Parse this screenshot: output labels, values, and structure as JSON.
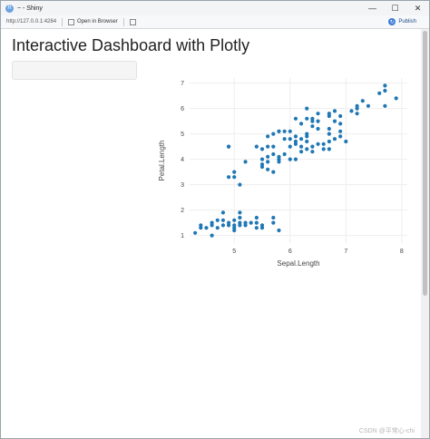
{
  "window": {
    "title": "~ - Shiny",
    "app_icon": "r-icon",
    "controls": [
      "minimize-icon",
      "maximize-icon",
      "close-icon"
    ]
  },
  "toolbar": {
    "url": "http://127.0.0.1:4284",
    "open_in_browser": "Open in Browser",
    "publish": "Publish"
  },
  "page": {
    "title": "Interactive Dashboard with Plotly",
    "select_value": ""
  },
  "watermark": "CSDN @平常心-chi",
  "chart_data": {
    "type": "scatter",
    "xlabel": "Sepal.Length",
    "ylabel": "Petal.Length",
    "xlim": [
      4.2,
      8.1
    ],
    "ylim": [
      0.7,
      7.2
    ],
    "xticks": [
      5,
      6,
      7,
      8
    ],
    "yticks": [
      1,
      2,
      3,
      4,
      5,
      6,
      7
    ],
    "grid": true,
    "marker_color": "#1f77b4",
    "points": [
      [
        4.3,
        1.1
      ],
      [
        4.4,
        1.4
      ],
      [
        4.4,
        1.3
      ],
      [
        4.5,
        1.3
      ],
      [
        4.6,
        1.4
      ],
      [
        4.6,
        1.0
      ],
      [
        4.6,
        1.5
      ],
      [
        4.7,
        1.3
      ],
      [
        4.7,
        1.6
      ],
      [
        4.8,
        1.6
      ],
      [
        4.8,
        1.4
      ],
      [
        4.8,
        1.9
      ],
      [
        4.9,
        1.4
      ],
      [
        4.9,
        1.5
      ],
      [
        5.0,
        1.4
      ],
      [
        5.0,
        1.6
      ],
      [
        5.0,
        1.2
      ],
      [
        5.0,
        1.3
      ],
      [
        5.1,
        1.4
      ],
      [
        5.1,
        1.5
      ],
      [
        5.1,
        1.7
      ],
      [
        5.1,
        1.9
      ],
      [
        5.2,
        1.5
      ],
      [
        5.2,
        1.4
      ],
      [
        5.3,
        1.5
      ],
      [
        5.4,
        1.7
      ],
      [
        5.4,
        1.5
      ],
      [
        5.4,
        1.3
      ],
      [
        5.5,
        1.4
      ],
      [
        5.5,
        1.3
      ],
      [
        5.7,
        1.5
      ],
      [
        5.7,
        1.7
      ],
      [
        5.8,
        1.2
      ],
      [
        4.9,
        4.5
      ],
      [
        4.9,
        3.3
      ],
      [
        5.0,
        3.5
      ],
      [
        5.0,
        3.3
      ],
      [
        5.1,
        3.0
      ],
      [
        5.2,
        3.9
      ],
      [
        5.4,
        4.5
      ],
      [
        5.5,
        4.0
      ],
      [
        5.5,
        3.8
      ],
      [
        5.5,
        3.7
      ],
      [
        5.5,
        4.4
      ],
      [
        5.6,
        3.9
      ],
      [
        5.6,
        4.5
      ],
      [
        5.6,
        4.1
      ],
      [
        5.6,
        3.6
      ],
      [
        5.7,
        4.2
      ],
      [
        5.7,
        4.5
      ],
      [
        5.7,
        3.5
      ],
      [
        5.8,
        4.1
      ],
      [
        5.8,
        4.0
      ],
      [
        5.8,
        3.9
      ],
      [
        5.9,
        4.8
      ],
      [
        5.9,
        4.2
      ],
      [
        6.0,
        4.0
      ],
      [
        6.0,
        5.1
      ],
      [
        6.0,
        4.5
      ],
      [
        6.1,
        4.7
      ],
      [
        6.1,
        4.0
      ],
      [
        6.1,
        4.6
      ],
      [
        6.2,
        4.5
      ],
      [
        6.2,
        4.3
      ],
      [
        6.3,
        4.7
      ],
      [
        6.3,
        4.9
      ],
      [
        6.3,
        4.4
      ],
      [
        6.4,
        4.5
      ],
      [
        6.4,
        4.3
      ],
      [
        6.5,
        4.6
      ],
      [
        6.6,
        4.6
      ],
      [
        6.6,
        4.4
      ],
      [
        6.7,
        4.7
      ],
      [
        6.7,
        4.4
      ],
      [
        6.7,
        5.0
      ],
      [
        6.8,
        4.8
      ],
      [
        6.9,
        4.9
      ],
      [
        7.0,
        4.7
      ],
      [
        4.9,
        4.5
      ],
      [
        5.6,
        4.9
      ],
      [
        5.7,
        5.0
      ],
      [
        5.8,
        5.1
      ],
      [
        5.9,
        5.1
      ],
      [
        6.0,
        4.8
      ],
      [
        6.1,
        4.9
      ],
      [
        6.1,
        5.6
      ],
      [
        6.2,
        4.8
      ],
      [
        6.2,
        5.4
      ],
      [
        6.3,
        5.0
      ],
      [
        6.3,
        5.6
      ],
      [
        6.3,
        6.0
      ],
      [
        6.4,
        5.3
      ],
      [
        6.4,
        5.6
      ],
      [
        6.4,
        5.5
      ],
      [
        6.5,
        5.2
      ],
      [
        6.5,
        5.5
      ],
      [
        6.5,
        5.8
      ],
      [
        6.7,
        5.7
      ],
      [
        6.7,
        5.2
      ],
      [
        6.7,
        5.8
      ],
      [
        6.8,
        5.5
      ],
      [
        6.8,
        5.9
      ],
      [
        6.9,
        5.1
      ],
      [
        6.9,
        5.7
      ],
      [
        7.1,
        5.9
      ],
      [
        7.2,
        6.0
      ],
      [
        7.2,
        5.8
      ],
      [
        7.3,
        6.3
      ],
      [
        7.4,
        6.1
      ],
      [
        7.6,
        6.6
      ],
      [
        7.7,
        6.7
      ],
      [
        7.7,
        6.9
      ],
      [
        7.7,
        6.1
      ],
      [
        7.9,
        6.4
      ],
      [
        7.2,
        6.1
      ],
      [
        5.8,
        5.1
      ],
      [
        6.9,
        5.4
      ]
    ]
  }
}
